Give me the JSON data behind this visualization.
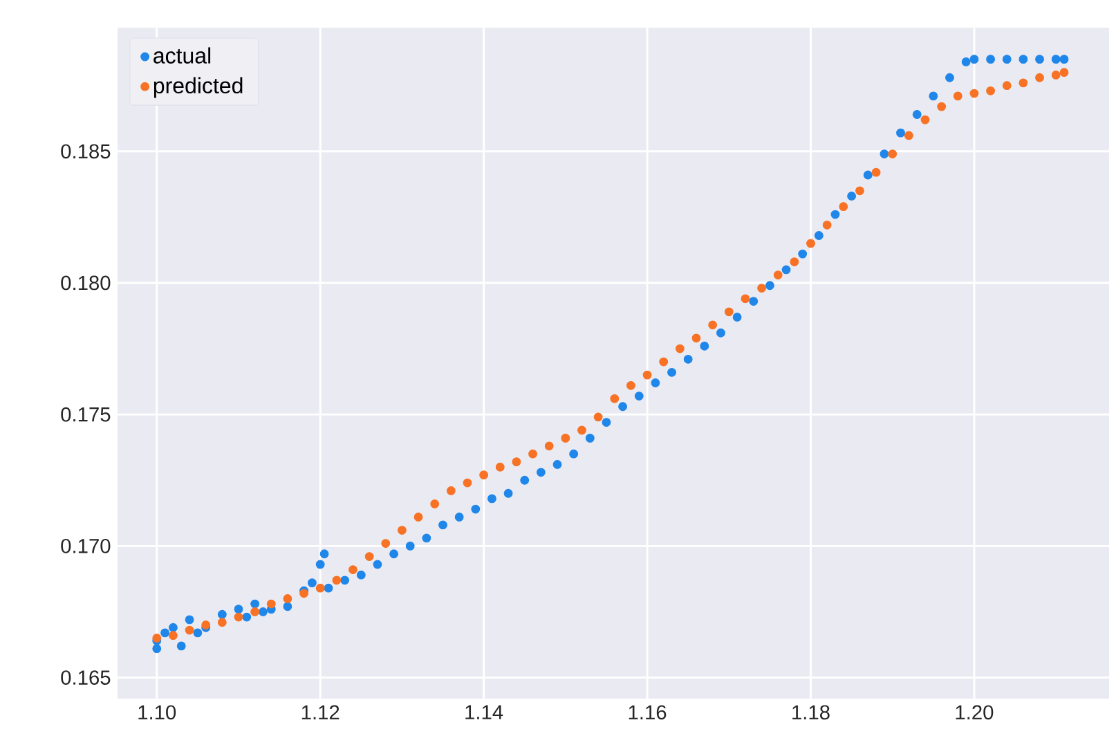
{
  "chart_data": {
    "type": "scatter",
    "xlim": [
      1.0952,
      1.2165
    ],
    "ylim": [
      0.1642,
      0.1897
    ],
    "xticks": [
      {
        "value": 1.1,
        "label": "1.10"
      },
      {
        "value": 1.12,
        "label": "1.12"
      },
      {
        "value": 1.14,
        "label": "1.14"
      },
      {
        "value": 1.16,
        "label": "1.16"
      },
      {
        "value": 1.18,
        "label": "1.18"
      },
      {
        "value": 1.2,
        "label": "1.20"
      }
    ],
    "yticks": [
      0.165,
      {
        "value": 0.17,
        "label": "0.170"
      },
      0.175,
      {
        "value": 0.18,
        "label": "0.180"
      },
      0.185
    ],
    "grid": true,
    "legend": "top left",
    "marker": "circle",
    "series": [
      {
        "name": "actual",
        "color": "#1f86ea",
        "x": [
          1.1,
          1.1,
          1.101,
          1.102,
          1.103,
          1.104,
          1.105,
          1.106,
          1.108,
          1.11,
          1.111,
          1.112,
          1.113,
          1.114,
          1.116,
          1.118,
          1.119,
          1.12,
          1.1205,
          1.121,
          1.123,
          1.125,
          1.127,
          1.129,
          1.131,
          1.133,
          1.135,
          1.137,
          1.139,
          1.141,
          1.143,
          1.145,
          1.147,
          1.149,
          1.151,
          1.153,
          1.155,
          1.157,
          1.159,
          1.161,
          1.163,
          1.165,
          1.167,
          1.169,
          1.171,
          1.173,
          1.175,
          1.177,
          1.179,
          1.181,
          1.183,
          1.185,
          1.187,
          1.189,
          1.191,
          1.193,
          1.195,
          1.197,
          1.199,
          1.2,
          1.202,
          1.204,
          1.206,
          1.208,
          1.21,
          1.211
        ],
        "values": [
          0.1661,
          0.1664,
          0.1667,
          0.1669,
          0.1662,
          0.1672,
          0.1667,
          0.1669,
          0.1674,
          0.1676,
          0.1673,
          0.1678,
          0.1675,
          0.1676,
          0.1677,
          0.1683,
          0.1686,
          0.1693,
          0.1697,
          0.1684,
          0.1687,
          0.1689,
          0.1693,
          0.1697,
          0.17,
          0.1703,
          0.1708,
          0.1711,
          0.1714,
          0.1718,
          0.172,
          0.1725,
          0.1728,
          0.1731,
          0.1735,
          0.1741,
          0.1747,
          0.1753,
          0.1757,
          0.1762,
          0.1766,
          0.1771,
          0.1776,
          0.1781,
          0.1787,
          0.1793,
          0.1799,
          0.1805,
          0.1811,
          0.1818,
          0.1826,
          0.1833,
          0.1841,
          0.1849,
          0.1857,
          0.1864,
          0.1871,
          0.1878,
          0.1884,
          0.1885,
          0.1885,
          0.1885,
          0.1885,
          0.1885,
          0.1885,
          0.1885
        ]
      },
      {
        "name": "predicted",
        "color": "#f87225",
        "x": [
          1.1,
          1.102,
          1.104,
          1.106,
          1.108,
          1.11,
          1.112,
          1.114,
          1.116,
          1.118,
          1.12,
          1.122,
          1.124,
          1.126,
          1.128,
          1.13,
          1.132,
          1.134,
          1.136,
          1.138,
          1.14,
          1.142,
          1.144,
          1.146,
          1.148,
          1.15,
          1.152,
          1.154,
          1.156,
          1.158,
          1.16,
          1.162,
          1.164,
          1.166,
          1.168,
          1.17,
          1.172,
          1.174,
          1.176,
          1.178,
          1.18,
          1.182,
          1.184,
          1.186,
          1.188,
          1.19,
          1.192,
          1.194,
          1.196,
          1.198,
          1.2,
          1.202,
          1.204,
          1.206,
          1.208,
          1.21,
          1.211
        ],
        "values": [
          0.1665,
          0.1666,
          0.1668,
          0.167,
          0.1671,
          0.1673,
          0.1675,
          0.1678,
          0.168,
          0.1682,
          0.1684,
          0.1687,
          0.1691,
          0.1696,
          0.1701,
          0.1706,
          0.1711,
          0.1716,
          0.1721,
          0.1724,
          0.1727,
          0.173,
          0.1732,
          0.1735,
          0.1738,
          0.1741,
          0.1744,
          0.1749,
          0.1756,
          0.1761,
          0.1765,
          0.177,
          0.1775,
          0.1779,
          0.1784,
          0.1789,
          0.1794,
          0.1798,
          0.1803,
          0.1808,
          0.1815,
          0.1822,
          0.1829,
          0.1835,
          0.1842,
          0.1849,
          0.1856,
          0.1862,
          0.1867,
          0.1871,
          0.1872,
          0.1873,
          0.1875,
          0.1876,
          0.1878,
          0.1879,
          0.188
        ]
      }
    ]
  }
}
